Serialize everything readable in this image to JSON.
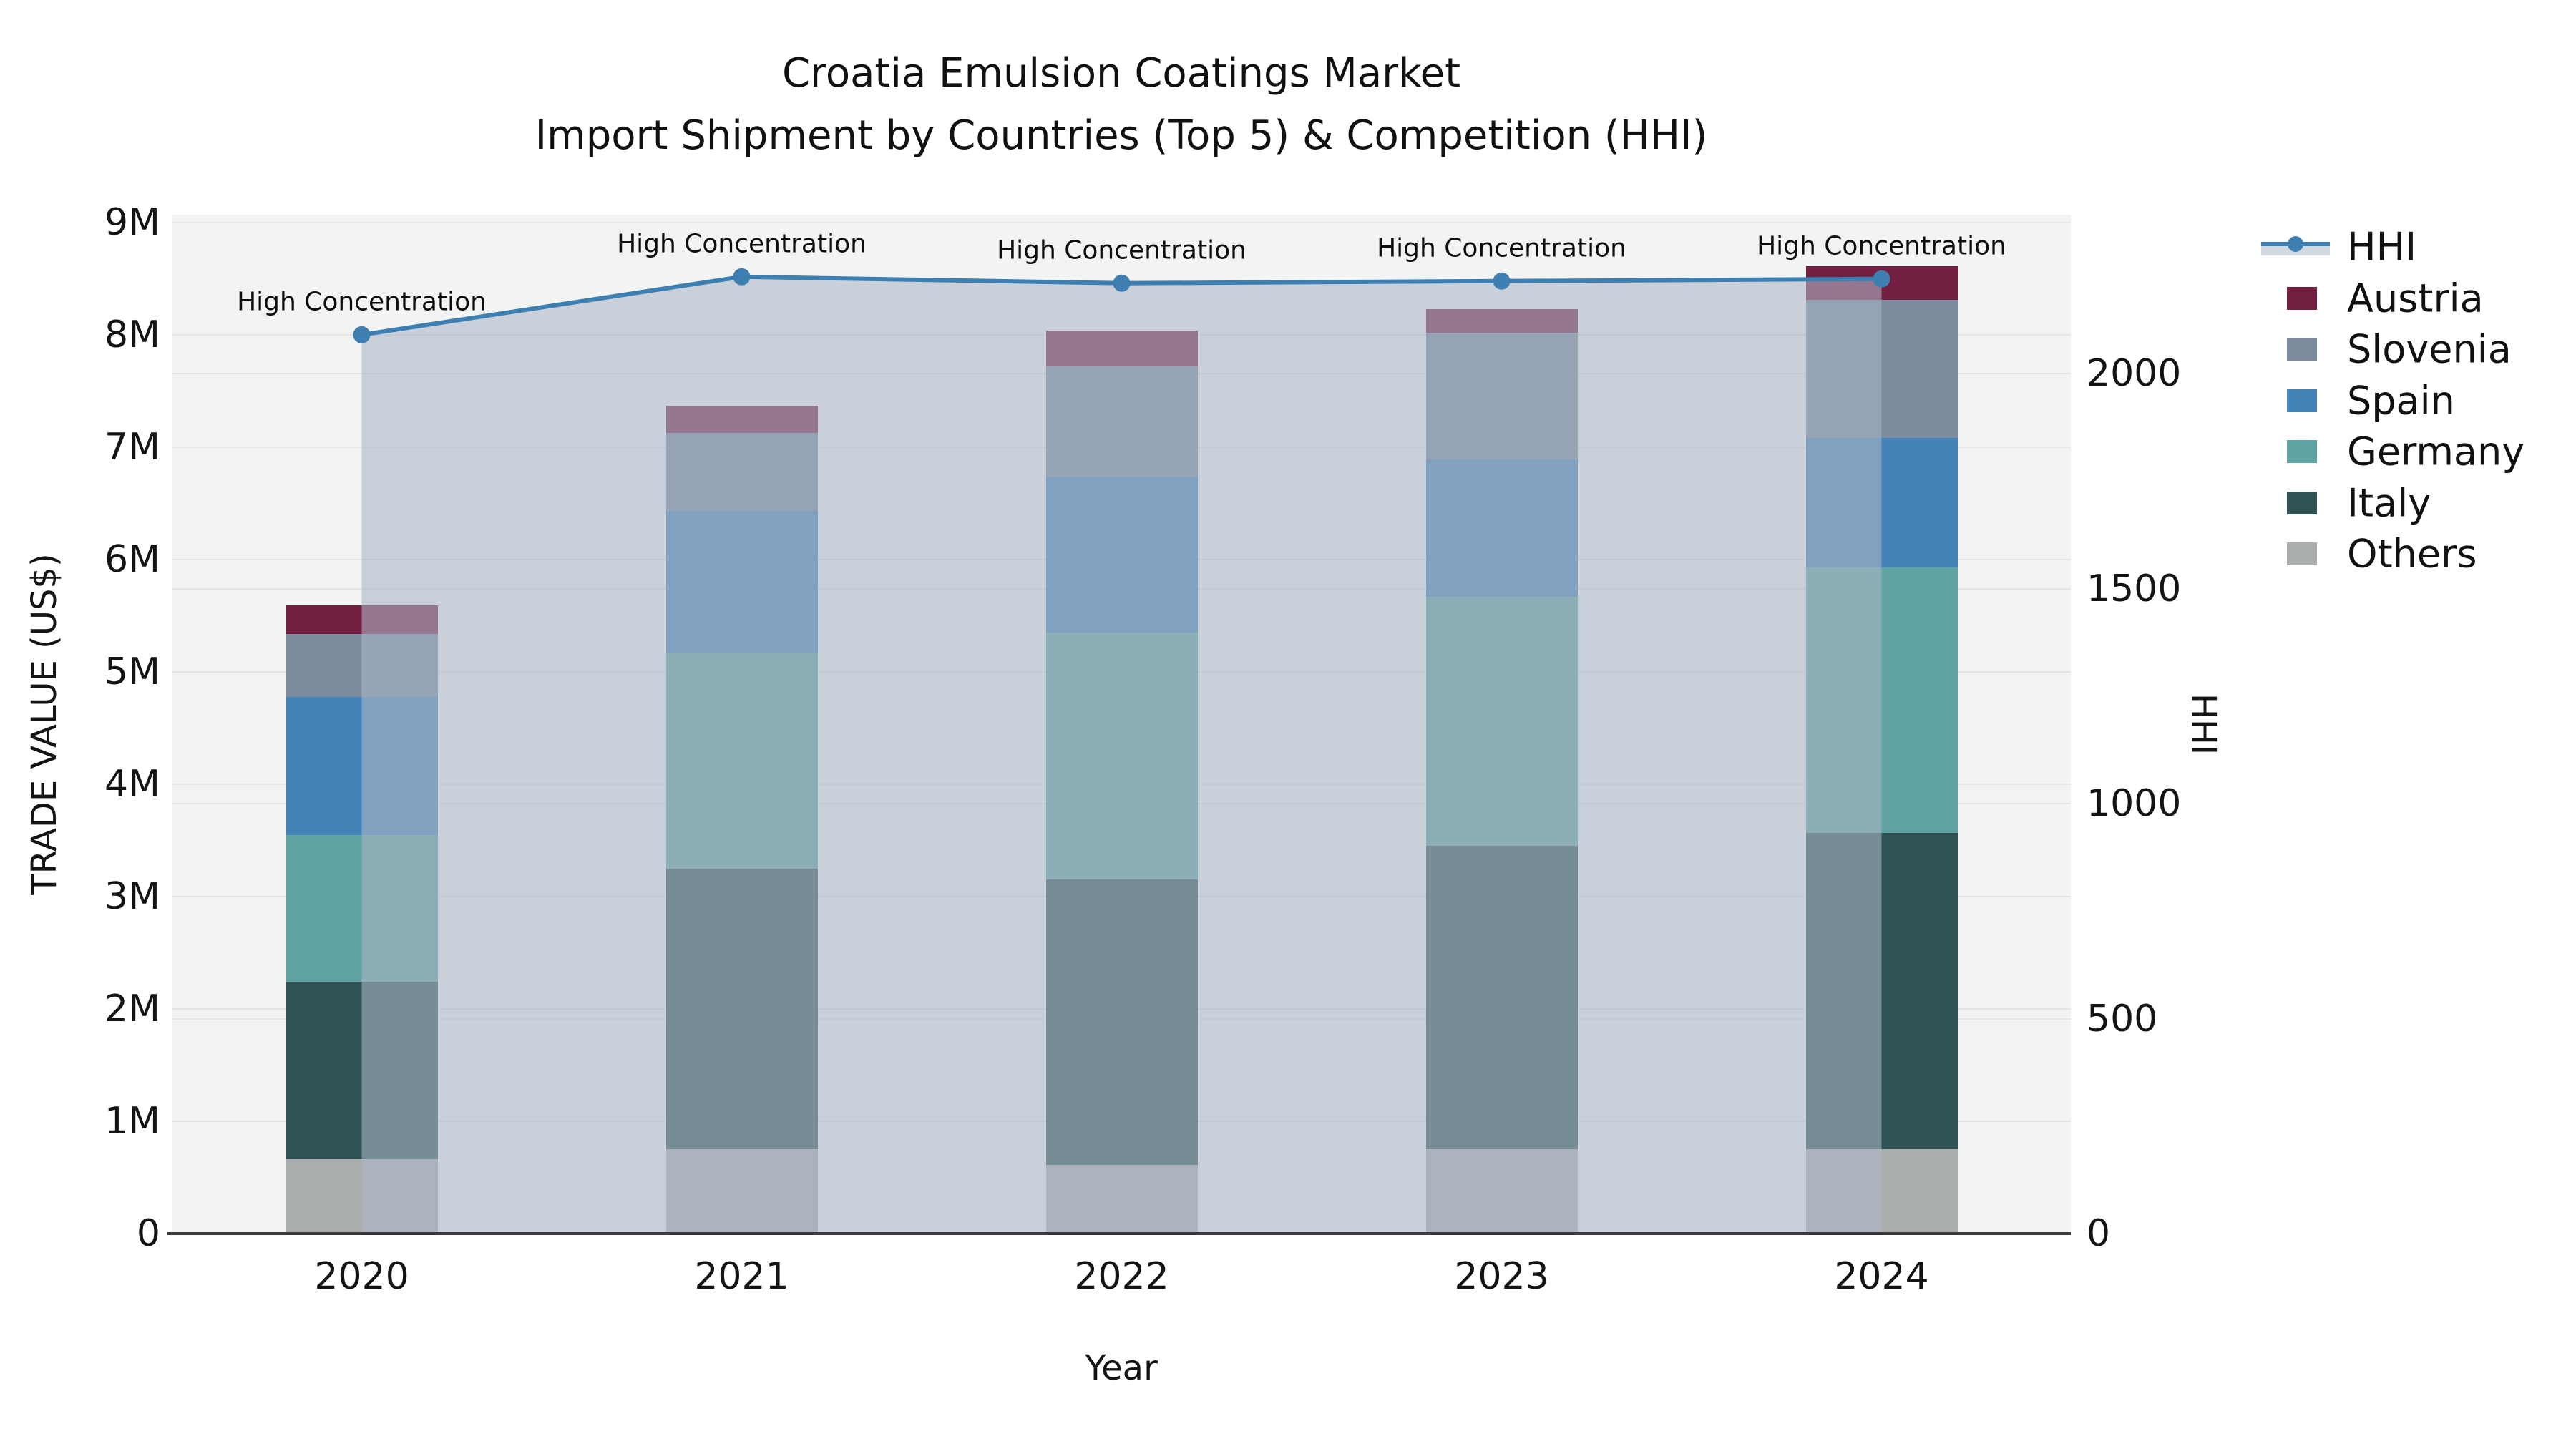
{
  "title": {
    "line1": "Croatia Emulsion Coatings Market",
    "line2": "Import Shipment by Countries (Top 5) & Competition (HHI)"
  },
  "axes": {
    "x": {
      "label": "Year",
      "tick_labels": [
        "2020",
        "2021",
        "2022",
        "2023",
        "2024"
      ]
    },
    "left": {
      "label": "TRADE VALUE (US$)",
      "ticks": [
        {
          "v": 0,
          "label": "0"
        },
        {
          "v": 1,
          "label": "1M"
        },
        {
          "v": 2,
          "label": "2M"
        },
        {
          "v": 3,
          "label": "3M"
        },
        {
          "v": 4,
          "label": "4M"
        },
        {
          "v": 5,
          "label": "5M"
        },
        {
          "v": 6,
          "label": "6M"
        },
        {
          "v": 7,
          "label": "7M"
        },
        {
          "v": 8,
          "label": "8M"
        },
        {
          "v": 9,
          "label": "9M"
        }
      ]
    },
    "right": {
      "label": "HHI",
      "ticks": [
        {
          "v": 0,
          "label": "0"
        },
        {
          "v": 500,
          "label": "500"
        },
        {
          "v": 1000,
          "label": "1000"
        },
        {
          "v": 1500,
          "label": "1500"
        },
        {
          "v": 2000,
          "label": "2000"
        }
      ]
    }
  },
  "legend": {
    "items": [
      {
        "name": "HHI",
        "type": "line",
        "color": "#3e7fb2",
        "band_color": "#d2d8df"
      },
      {
        "name": "Austria",
        "type": "box",
        "color": "#731f42"
      },
      {
        "name": "Slovenia",
        "type": "box",
        "color": "#7b8b9d"
      },
      {
        "name": "Spain",
        "type": "box",
        "color": "#4483b7"
      },
      {
        "name": "Germany",
        "type": "box",
        "color": "#61a3a3"
      },
      {
        "name": "Italy",
        "type": "box",
        "color": "#2e5352"
      },
      {
        "name": "Others",
        "type": "box",
        "color": "#abaeae"
      }
    ]
  },
  "chart_data": {
    "type": "bar",
    "subtype": "stacked-bar-with-line",
    "title": "Croatia Emulsion Coatings Market — Import Shipment by Countries (Top 5) & Competition (HHI)",
    "xlabel": "Year",
    "ylabel_left": "TRADE VALUE (US$)",
    "ylabel_right": "HHI",
    "categories": [
      "2020",
      "2021",
      "2022",
      "2023",
      "2024"
    ],
    "units": "millions US$",
    "ylim_left": [
      0,
      9.07
    ],
    "ylim_right": [
      0,
      2369
    ],
    "grid": true,
    "legend_position": "right",
    "series": [
      {
        "name": "Others",
        "color": "#abaeae",
        "values": [
          0.66,
          0.75,
          0.61,
          0.75,
          0.75
        ]
      },
      {
        "name": "Italy",
        "color": "#2e5352",
        "values": [
          1.58,
          2.5,
          2.54,
          2.7,
          2.82
        ]
      },
      {
        "name": "Germany",
        "color": "#61a3a3",
        "values": [
          1.31,
          1.92,
          2.2,
          2.22,
          2.36
        ]
      },
      {
        "name": "Spain",
        "color": "#4483b7",
        "values": [
          1.23,
          1.26,
          1.38,
          1.22,
          1.15
        ]
      },
      {
        "name": "Slovenia",
        "color": "#7b8b9d",
        "values": [
          0.56,
          0.7,
          0.99,
          1.13,
          1.23
        ]
      },
      {
        "name": "Austria",
        "color": "#731f42",
        "values": [
          0.25,
          0.24,
          0.32,
          0.21,
          0.3
        ]
      }
    ],
    "bar_totals": [
      5.59,
      7.37,
      8.04,
      8.23,
      8.61
    ],
    "line_series": {
      "name": "HHI",
      "color": "#3e7fb2",
      "area_fill": "rgba(172,183,198,0.58)",
      "values": [
        2090,
        2225,
        2210,
        2215,
        2220
      ]
    },
    "point_annotations": [
      "High Concentration",
      "High Concentration",
      "High Concentration",
      "High Concentration",
      "High Concentration"
    ]
  }
}
